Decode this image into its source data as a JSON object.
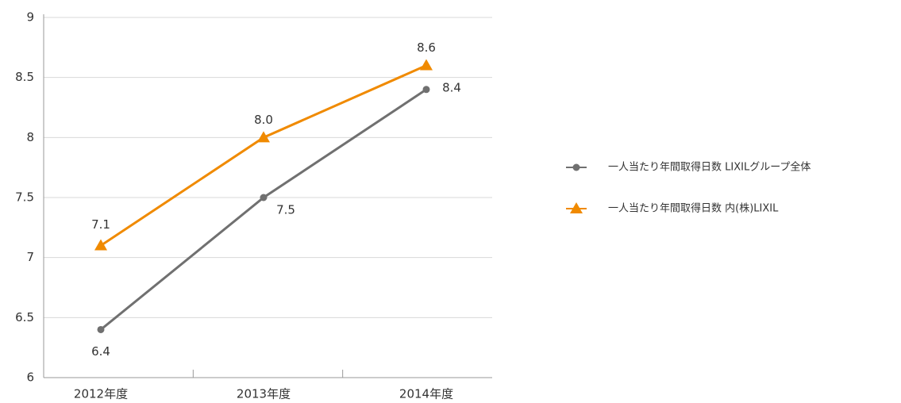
{
  "chart_data": {
    "type": "line",
    "categories": [
      "2012年度",
      "2013年度",
      "2014年度"
    ],
    "series": [
      {
        "name": "一人当たり年間取得日数 LIXILグループ全体",
        "color": "#707070",
        "marker": "circle",
        "values": [
          6.4,
          7.5,
          8.4
        ]
      },
      {
        "name": "一人当たり年間取得日数 内(株)LIXIL",
        "color": "#f08a00",
        "marker": "triangle",
        "values": [
          7.1,
          8,
          8.6
        ],
        "value_labels": [
          "7.1",
          "8.0",
          "8.6"
        ]
      }
    ],
    "ylim": [
      6,
      9
    ],
    "yticks": [
      6,
      6.5,
      7,
      7.5,
      8,
      8.5,
      9
    ],
    "grid": true,
    "legend": "right"
  }
}
